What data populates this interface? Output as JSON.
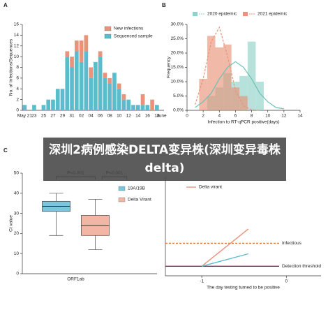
{
  "banner": "深圳2病例感染DELTA变异株(深圳变异毒株delta)",
  "chart_data": [
    {
      "type": "bar",
      "panel": "A",
      "stacked": true,
      "ylabel": "No. of Infections/Sequences",
      "categories": [
        "May 21",
        null,
        "23",
        null,
        "25",
        null,
        "27",
        null,
        "29",
        null,
        "31",
        null,
        "02",
        null,
        "04",
        null,
        "06",
        null,
        "08",
        null,
        "10",
        null,
        "12",
        null,
        "14",
        null,
        "16",
        null,
        "18",
        "June"
      ],
      "series": [
        {
          "name": "Sequenced sample",
          "color": "#5bbccc",
          "values": [
            1,
            0,
            1,
            0,
            1,
            2,
            2,
            4,
            4,
            10,
            8,
            11,
            9,
            11,
            6,
            9,
            10,
            6,
            5,
            7,
            4,
            2,
            2,
            1,
            1,
            1,
            1,
            0,
            1,
            0
          ]
        },
        {
          "name": "New infections",
          "color": "#e8937a",
          "values": [
            0,
            0,
            0,
            0,
            0,
            0,
            0,
            0,
            0,
            1,
            2,
            2,
            4,
            3,
            2,
            0,
            1,
            1,
            1,
            0,
            1,
            1,
            0,
            0,
            0,
            2,
            0,
            2,
            0,
            0
          ]
        }
      ],
      "ylim": [
        0,
        16
      ],
      "yticks": [
        0,
        2,
        4,
        6,
        8,
        10,
        12,
        14,
        16
      ]
    },
    {
      "type": "bar",
      "panel": "B",
      "xlabel": "Infection to RT-qPCR positive(days)",
      "ylabel": "Frequency",
      "x": [
        1,
        2,
        3,
        4,
        5,
        6,
        7,
        8,
        9,
        10
      ],
      "series": [
        {
          "name": "2020 epidemic",
          "color": "#8fd3c8",
          "values": [
            0,
            0,
            5,
            8,
            13,
            10,
            12,
            24,
            10,
            0
          ]
        },
        {
          "name": "2021 epidemic",
          "color": "#e8937a",
          "values": [
            0,
            11,
            26,
            22,
            23,
            8,
            5,
            0,
            0,
            0
          ]
        }
      ],
      "fits": [
        {
          "color": "#6cc1b3",
          "x": [
            1,
            2,
            3,
            4,
            5,
            6,
            7,
            8,
            9,
            10,
            11,
            12
          ],
          "values": [
            1,
            3,
            6,
            11,
            15,
            17,
            15,
            11,
            6,
            3,
            1,
            0.5
          ]
        },
        {
          "color": "#e8937a",
          "x": [
            1,
            2,
            3,
            4,
            5,
            6,
            7,
            8,
            9
          ],
          "values": [
            2,
            11,
            24,
            29,
            19,
            7,
            1.5,
            0.2,
            0
          ]
        }
      ],
      "xlim": [
        0,
        14
      ],
      "xticks": [
        0,
        2,
        4,
        6,
        8,
        10,
        12,
        14
      ],
      "ylim": [
        0,
        30
      ],
      "yticks": [
        {
          "value": 0,
          "label": "0.0%"
        },
        {
          "value": 5,
          "label": "5.0%"
        },
        {
          "value": 10,
          "label": "10.0%"
        },
        {
          "value": 15,
          "label": "15.0%"
        },
        {
          "value": 20,
          "label": "20.0%"
        },
        {
          "value": 25,
          "label": "25.0%"
        },
        {
          "value": 30,
          "label": "30.0%"
        }
      ]
    },
    {
      "type": "box",
      "panel": "C",
      "ylabel": "Ct value",
      "categories": [
        "ORF1ab"
      ],
      "series": [
        {
          "name": "19A/19B",
          "color": "#7cc6dd",
          "min": 19,
          "q1": 31,
          "median": 33.5,
          "q3": 36,
          "max": 40
        },
        {
          "name": "Delta Virant",
          "color": "#f2b7a4",
          "min": 12,
          "q1": 19,
          "median": 24,
          "q3": 29,
          "max": 37
        }
      ],
      "annotations": [
        "P<0.001",
        "P<0.001"
      ],
      "ylim": [
        0,
        50
      ],
      "yticks": [
        0,
        10,
        20,
        30,
        40,
        50
      ]
    },
    {
      "type": "line",
      "panel": "D",
      "xlabel": "The day testing turned to be positive",
      "series": [
        {
          "name": "Delta virant",
          "color": "#e8937a",
          "x": [
            -1,
            -0.45
          ],
          "values": [
            1,
            4.9
          ]
        },
        {
          "color": "#5bbccc",
          "x": [
            -1,
            -0.45
          ],
          "values": [
            1,
            2.3
          ]
        }
      ],
      "hlines": [
        {
          "name": "Infectious",
          "color": "#e07b39",
          "dash": true,
          "value": 3.4
        },
        {
          "name": "Detection threshold",
          "color": "#8b2252",
          "value": 1
        }
      ],
      "xlim": [
        -1.43,
        0.41
      ],
      "xticks": [
        -1,
        0
      ],
      "ylim": [
        0,
        10
      ]
    }
  ]
}
